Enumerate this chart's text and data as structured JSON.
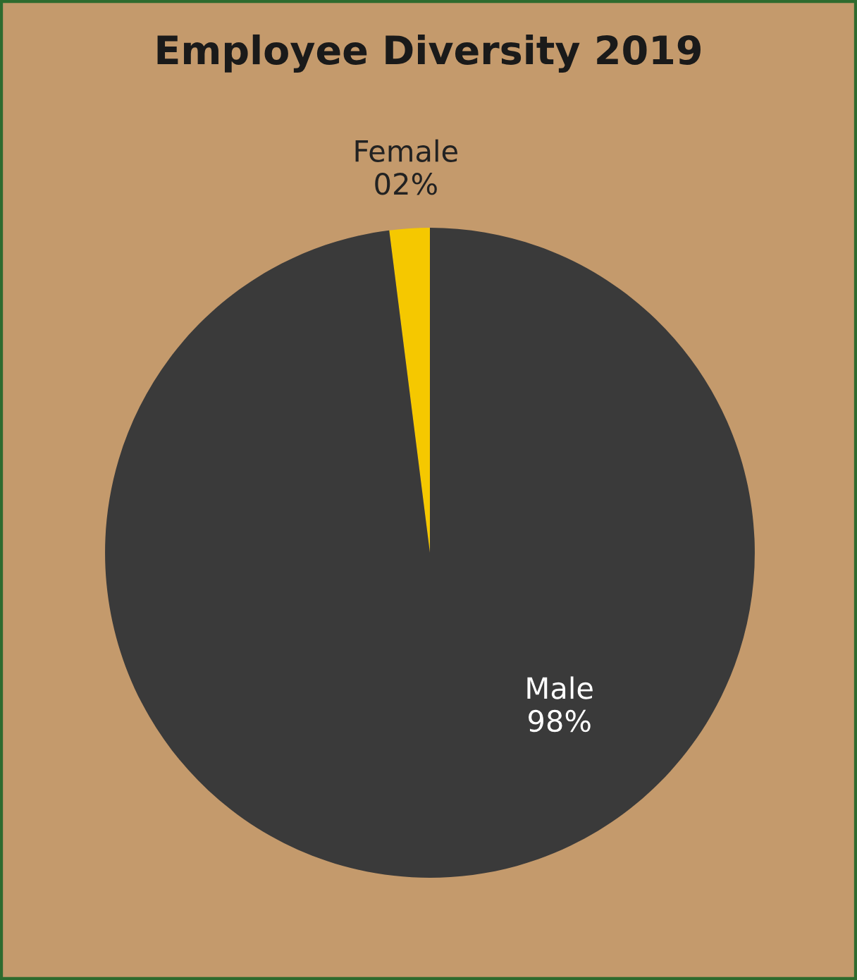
{
  "chart_data": {
    "type": "pie",
    "title": "Employee Diversity 2019",
    "categories": [
      "Female",
      "Male"
    ],
    "values": [
      2,
      98
    ],
    "colors": [
      "#f5c800",
      "#3a3a3a"
    ],
    "value_labels": [
      "02%",
      "98%"
    ]
  }
}
